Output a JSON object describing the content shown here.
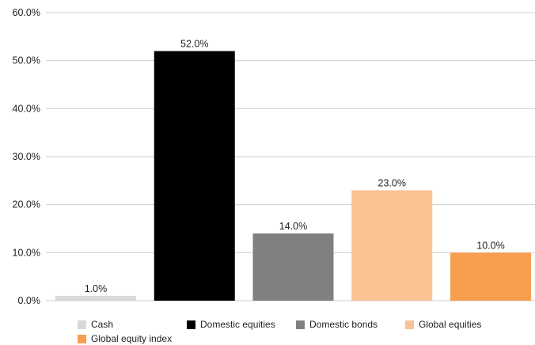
{
  "chart_data": {
    "type": "bar",
    "categories": [
      "Cash",
      "Domestic equities",
      "Domestic bonds",
      "Global equities",
      "Global equity index"
    ],
    "values": [
      1.0,
      52.0,
      14.0,
      23.0,
      10.0
    ],
    "data_labels": [
      "1.0%",
      "52.0%",
      "14.0%",
      "23.0%",
      "10.0%"
    ],
    "colors": [
      "#d9d9d9",
      "#000000",
      "#808080",
      "#f9c393",
      "#f79e4f"
    ],
    "ylim": [
      0,
      60
    ],
    "yticks": [
      0,
      10,
      20,
      30,
      40,
      50,
      60
    ],
    "ytick_labels": [
      "0.0%",
      "10.0%",
      "20.0%",
      "30.0%",
      "40.0%",
      "50.0%",
      "60.0%"
    ],
    "grid": true,
    "legend_position": "bottom",
    "legend": [
      "Cash",
      "Domestic equities",
      "Domestic bonds",
      "Global equities",
      "Global equity index"
    ]
  }
}
